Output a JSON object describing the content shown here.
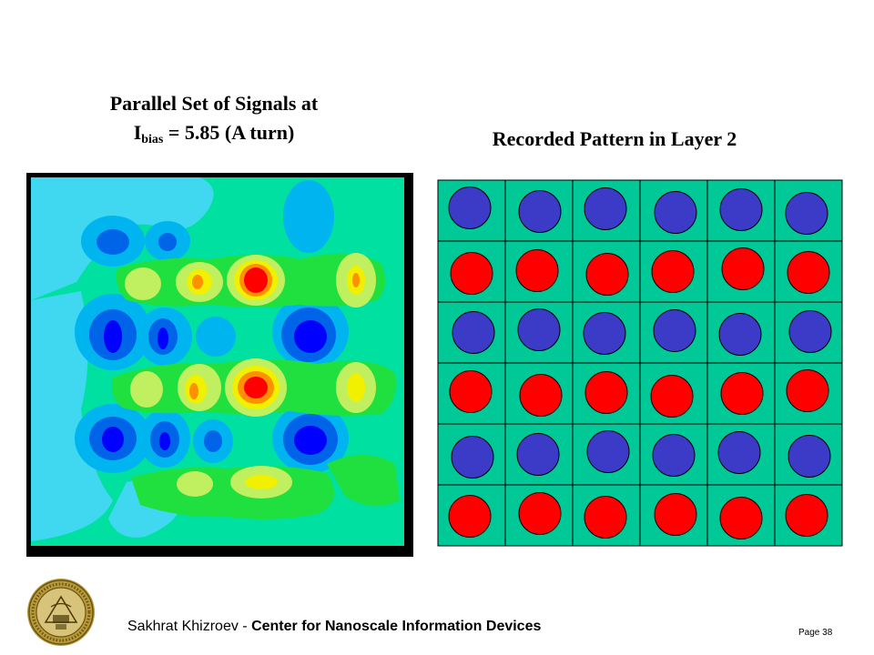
{
  "slide": {
    "title_left_line1": "Parallel Set of Signals at",
    "title_left_symbol": "I",
    "title_left_subscript": "bias",
    "title_left_rest": " = 5.85 (A turn)",
    "title_right": "Recorded Pattern in Layer 2"
  },
  "pattern": {
    "rows": [
      "blue",
      "red",
      "blue",
      "red",
      "blue",
      "red"
    ],
    "columns": 6,
    "colors": {
      "blue": "#3b3bc8",
      "red": "#ff0000",
      "cell": "#00c896"
    }
  },
  "heatmap": {
    "colors": {
      "background": "#00e0a0",
      "light_blue": "#40d8f0",
      "cyan": "#00b4f0",
      "blue": "#0064e8",
      "deep_blue": "#0000ff",
      "green": "#20e040",
      "yellow_green": "#c0f060",
      "yellow": "#f0f000",
      "orange": "#ff9000",
      "red": "#ff0000"
    }
  },
  "footer": {
    "author": "Sakhrat Khizroev - ",
    "organization": "Center for Nanoscale Information Devices",
    "page": "Page 38"
  }
}
